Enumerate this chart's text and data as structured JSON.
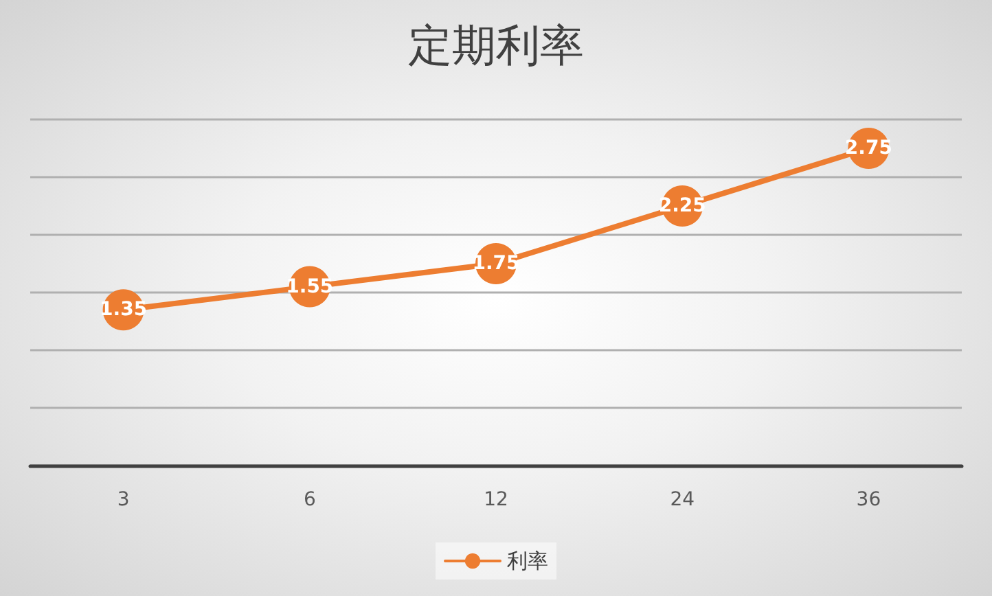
{
  "chart_data": {
    "type": "line",
    "title": "定期利率",
    "categories": [
      "3",
      "6",
      "12",
      "24",
      "36"
    ],
    "series": [
      {
        "name": "利率",
        "color": "#ed7d31",
        "values": [
          1.35,
          1.55,
          1.75,
          2.25,
          2.75
        ]
      }
    ],
    "ylim": [
      0,
      3
    ],
    "yticks": [
      {
        "value": 0,
        "label": null
      },
      {
        "value": 0.5,
        "label": null
      },
      {
        "value": 1,
        "label": null
      },
      {
        "value": 1.5,
        "label": null
      },
      {
        "value": 2,
        "label": null
      },
      {
        "value": 2.5,
        "label": null
      },
      {
        "value": 3,
        "label": null
      }
    ],
    "tick_labels": "x",
    "grid": "y",
    "legend": "bottom",
    "marker": "circle",
    "line_style": "solid",
    "data_labels": true
  }
}
